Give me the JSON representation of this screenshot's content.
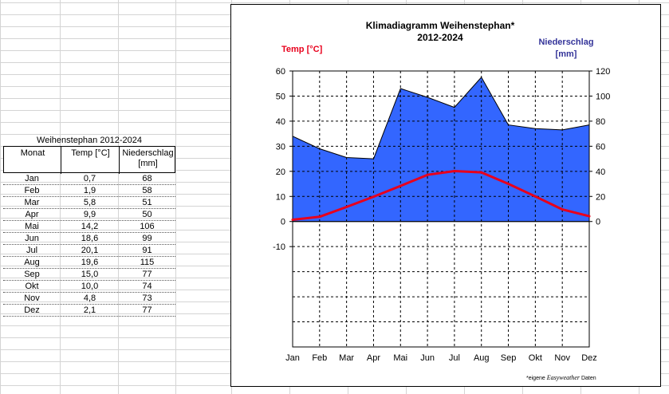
{
  "table": {
    "title": "Weihenstephan 2012-2024",
    "headers": [
      "Monat",
      "Temp [°C]",
      "Niederschlag",
      "[mm]"
    ],
    "rows": [
      {
        "month": "Jan",
        "temp": "0,7",
        "precip": "68"
      },
      {
        "month": "Feb",
        "temp": "1,9",
        "precip": "58"
      },
      {
        "month": "Mar",
        "temp": "5,8",
        "precip": "51"
      },
      {
        "month": "Apr",
        "temp": "9,9",
        "precip": "50"
      },
      {
        "month": "Mai",
        "temp": "14,2",
        "precip": "106"
      },
      {
        "month": "Jun",
        "temp": "18,6",
        "precip": "99"
      },
      {
        "month": "Jul",
        "temp": "20,1",
        "precip": "91"
      },
      {
        "month": "Aug",
        "temp": "19,6",
        "precip": "115"
      },
      {
        "month": "Sep",
        "temp": "15,0",
        "precip": "77"
      },
      {
        "month": "Okt",
        "temp": "10,0",
        "precip": "74"
      },
      {
        "month": "Nov",
        "temp": "4,8",
        "precip": "73"
      },
      {
        "month": "Dez",
        "temp": "2,1",
        "precip": "77"
      }
    ]
  },
  "chart_data": {
    "type": "area",
    "title": "Klimadiagramm Weihenstephan*",
    "subtitle": "2012-2024",
    "ylabel_left": "Temp [°C]",
    "ylabel_right": "Niederschlag",
    "ylabel_right_unit": "[mm]",
    "categories": [
      "Jan",
      "Feb",
      "Mar",
      "Apr",
      "Mai",
      "Jun",
      "Jul",
      "Aug",
      "Sep",
      "Okt",
      "Nov",
      "Dez"
    ],
    "y_left_ticks": [
      "60",
      "50",
      "40",
      "30",
      "20",
      "10",
      "0",
      "-10"
    ],
    "y_right_ticks": [
      "120",
      "100",
      "80",
      "60",
      "40",
      "20",
      "0"
    ],
    "ylim_left": [
      -50,
      60
    ],
    "ylim_right": [
      0,
      120
    ],
    "grid": true,
    "series": [
      {
        "name": "Temp [°C]",
        "type": "line",
        "axis": "left",
        "color": "#e8001c",
        "values": [
          0.7,
          1.9,
          5.8,
          9.9,
          14.2,
          18.6,
          20.1,
          19.6,
          15.0,
          10.0,
          4.8,
          2.1
        ]
      },
      {
        "name": "Niederschlag",
        "type": "area",
        "axis": "right",
        "color": "#3366ff",
        "values": [
          68,
          58,
          51,
          50,
          106,
          99,
          91,
          115,
          77,
          74,
          73,
          77
        ]
      }
    ],
    "footnote_prefix": "*eigene ",
    "footnote_brand": "Easyweather",
    "footnote_suffix": " Daten"
  },
  "colors": {
    "temp_label": "#e8001c",
    "precip_label": "#333399",
    "area": "#3366ff",
    "line": "#e8001c"
  }
}
